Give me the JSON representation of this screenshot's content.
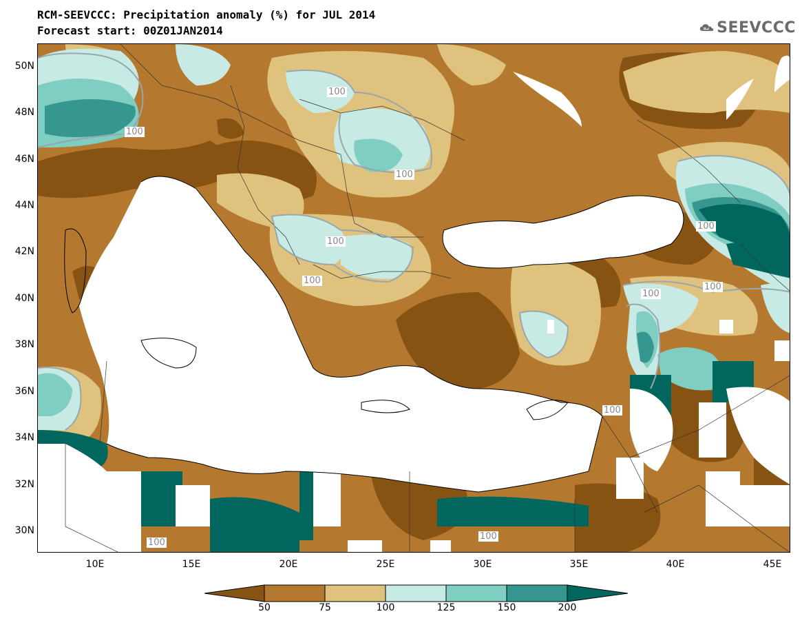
{
  "header": {
    "title": "RCM-SEEVCCC: Precipitation anomaly (%) for JUL 2014",
    "subtitle": "Forecast start: 00Z01JAN2014"
  },
  "logo": {
    "text": "SEEVCCC",
    "icon": "cloud-icon"
  },
  "map": {
    "latitude_labels": [
      "50N",
      "48N",
      "46N",
      "44N",
      "42N",
      "40N",
      "38N",
      "36N",
      "34N",
      "32N",
      "30N"
    ],
    "longitude_labels": [
      "10E",
      "15E",
      "20E",
      "25E",
      "30E",
      "35E",
      "40E",
      "45E"
    ],
    "contour_labels": [
      "100",
      "100",
      "100",
      "100",
      "100",
      "100",
      "100",
      "100",
      "100",
      "100",
      "100"
    ]
  },
  "colorbar": {
    "labels": [
      "50",
      "75",
      "100",
      "125",
      "150",
      "200"
    ],
    "colors": [
      "#875312",
      "#b4782e",
      "#dfc27d",
      "#c7eae5",
      "#80cdc1",
      "#35978f",
      "#01665e"
    ]
  }
}
